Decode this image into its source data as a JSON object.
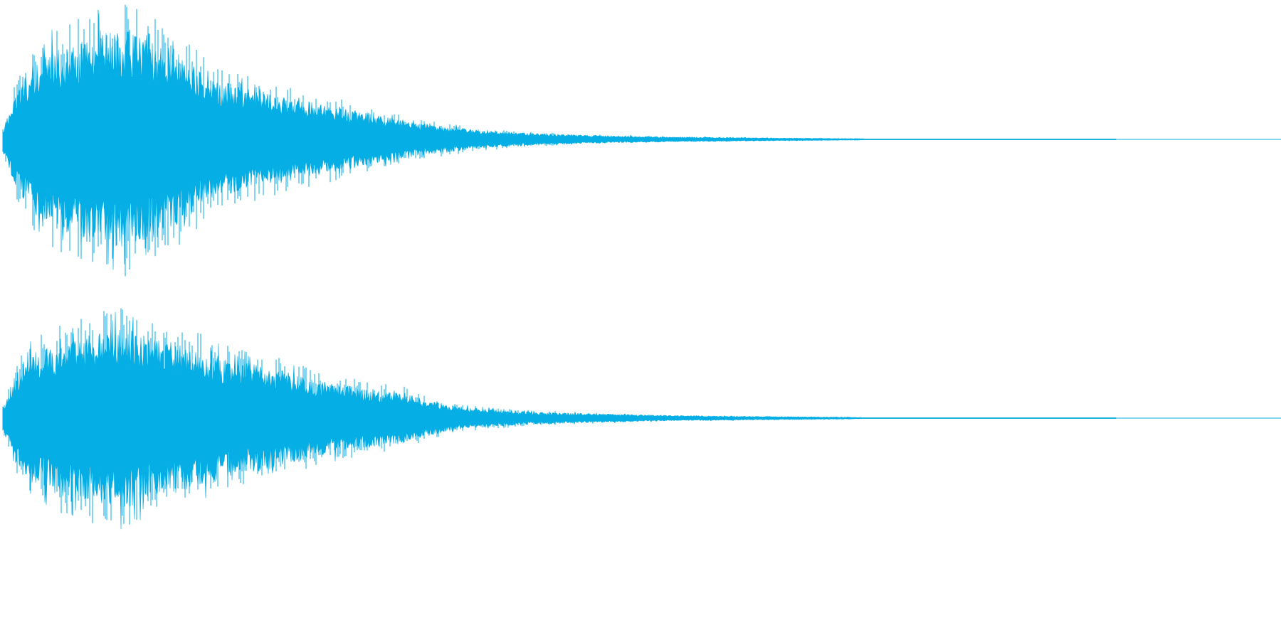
{
  "waveform": {
    "color": "#05aee4",
    "background": "#ffffff",
    "channels": [
      {
        "id": "channel-1",
        "envelope": [
          [
            0.0,
            0.08
          ],
          [
            0.01,
            0.34
          ],
          [
            0.025,
            0.56
          ],
          [
            0.045,
            0.7
          ],
          [
            0.07,
            0.76
          ],
          [
            0.095,
            0.84
          ],
          [
            0.11,
            0.86
          ],
          [
            0.13,
            0.8
          ],
          [
            0.15,
            0.72
          ],
          [
            0.165,
            0.62
          ],
          [
            0.19,
            0.46
          ],
          [
            0.22,
            0.4
          ],
          [
            0.26,
            0.32
          ],
          [
            0.3,
            0.26
          ],
          [
            0.34,
            0.18
          ],
          [
            0.38,
            0.12
          ],
          [
            0.43,
            0.07
          ],
          [
            0.48,
            0.045
          ],
          [
            0.54,
            0.03
          ],
          [
            0.6,
            0.02
          ],
          [
            0.68,
            0.012
          ],
          [
            0.77,
            0.006
          ],
          [
            0.78,
            0.002
          ],
          [
            1.0,
            0.002
          ]
        ]
      },
      {
        "id": "channel-2",
        "envelope": [
          [
            0.0,
            0.08
          ],
          [
            0.01,
            0.32
          ],
          [
            0.025,
            0.5
          ],
          [
            0.05,
            0.6
          ],
          [
            0.08,
            0.66
          ],
          [
            0.11,
            0.7
          ],
          [
            0.14,
            0.62
          ],
          [
            0.175,
            0.54
          ],
          [
            0.2,
            0.46
          ],
          [
            0.24,
            0.4
          ],
          [
            0.28,
            0.3
          ],
          [
            0.32,
            0.24
          ],
          [
            0.36,
            0.2
          ],
          [
            0.38,
            0.14
          ],
          [
            0.42,
            0.08
          ],
          [
            0.47,
            0.05
          ],
          [
            0.53,
            0.035
          ],
          [
            0.6,
            0.022
          ],
          [
            0.68,
            0.014
          ],
          [
            0.76,
            0.008
          ],
          [
            0.78,
            0.002
          ],
          [
            1.0,
            0.002
          ]
        ]
      }
    ]
  }
}
